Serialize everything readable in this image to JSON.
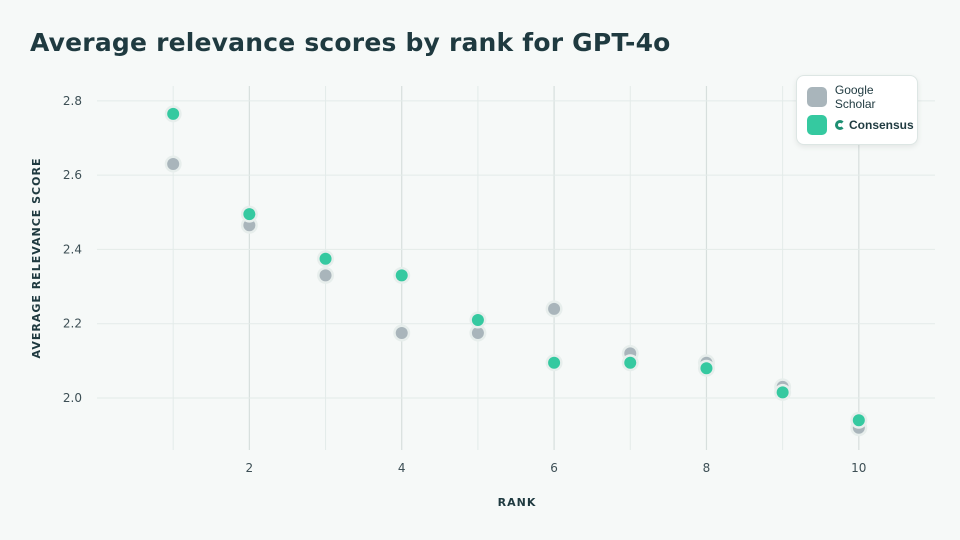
{
  "title": "Average relevance scores by rank for GPT-4o",
  "colors": {
    "google_scholar": "#a9b5bb",
    "consensus": "#35c9a0",
    "point_halo": "#e7eeec",
    "grid": "#e3ebe9",
    "grid_strong": "#d7dfdd"
  },
  "chart_data": {
    "type": "scatter",
    "title": "Average relevance scores by rank for GPT-4o",
    "xlabel": "RANK",
    "ylabel": "AVERAGE  RELEVANCE  SCORE",
    "xlim": [
      0,
      11
    ],
    "ylim": [
      1.86,
      2.84
    ],
    "x_ticks": [
      2,
      4,
      6,
      8,
      10
    ],
    "y_ticks": [
      2.0,
      2.2,
      2.4,
      2.6,
      2.8
    ],
    "y_tick_labels": [
      "2.0",
      "2.2",
      "2.4",
      "2.6",
      "2.8"
    ],
    "grid": true,
    "legend_position": "top-right",
    "series": [
      {
        "name": "Google Scholar",
        "color": "#a9b5bb",
        "x": [
          1,
          2,
          3,
          4,
          5,
          6,
          7,
          8,
          9,
          10
        ],
        "y": [
          2.63,
          2.465,
          2.33,
          2.175,
          2.175,
          2.24,
          2.12,
          2.095,
          2.03,
          1.92
        ]
      },
      {
        "name": "Consensus",
        "color": "#35c9a0",
        "x": [
          1,
          2,
          3,
          4,
          5,
          6,
          7,
          8,
          9,
          10
        ],
        "y": [
          2.765,
          2.495,
          2.375,
          2.33,
          2.21,
          2.095,
          2.095,
          2.08,
          2.015,
          1.94
        ]
      }
    ]
  },
  "legend": {
    "items": [
      {
        "label": "Google Scholar"
      },
      {
        "label": "Consensus"
      }
    ]
  }
}
